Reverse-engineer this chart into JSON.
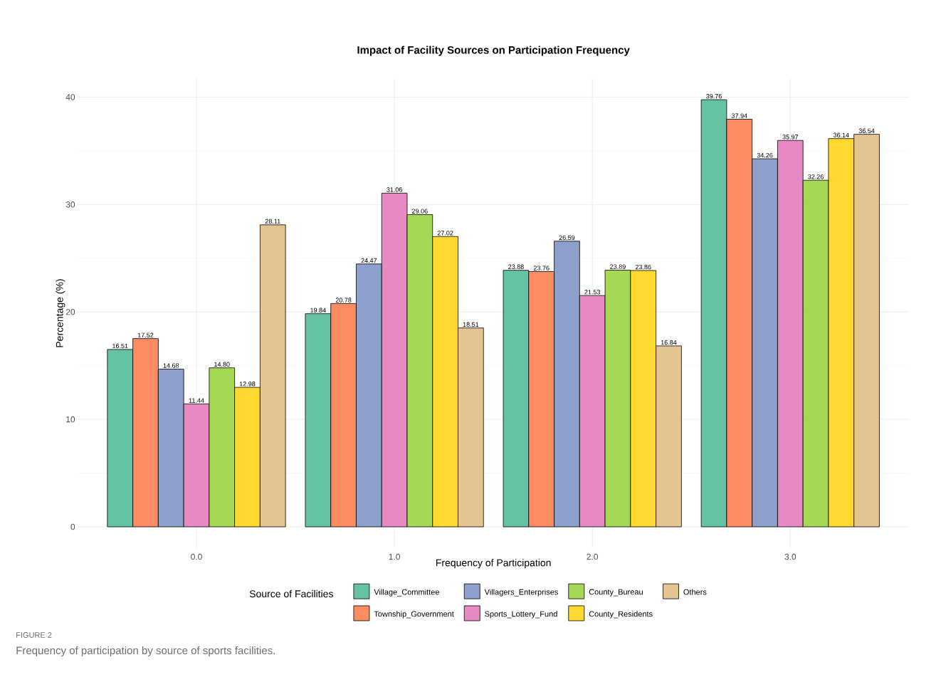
{
  "chart_data": {
    "type": "bar",
    "title": "Impact of Facility Sources on Participation Frequency",
    "xlabel": "Frequency of Participation",
    "ylabel": "Percentage (%)",
    "legend_title": "Source of Facilities",
    "categories": [
      "0.0",
      "1.0",
      "2.0",
      "3.0"
    ],
    "series": [
      {
        "name": "Village_Committee",
        "color": "#66c2a5",
        "values": [
          16.51,
          19.84,
          23.88,
          39.76
        ],
        "value_labels": [
          "16.51",
          "19.84",
          "23.88",
          "39.76"
        ]
      },
      {
        "name": "Township_Government",
        "color": "#fc8d62",
        "values": [
          17.52,
          20.78,
          23.76,
          37.94
        ],
        "value_labels": [
          "17.52",
          "20.78",
          "23.76",
          "37.94"
        ]
      },
      {
        "name": "Villagers_Enterprises",
        "color": "#8da0cb",
        "values": [
          14.68,
          24.47,
          26.59,
          34.26
        ],
        "value_labels": [
          "14.68",
          "24.47",
          "26.59",
          "34.26"
        ]
      },
      {
        "name": "Sports_Lottery_Fund",
        "color": "#e78ac3",
        "values": [
          11.44,
          31.06,
          21.53,
          35.97
        ],
        "value_labels": [
          "11.44",
          "31.06",
          "21.53",
          "35.97"
        ]
      },
      {
        "name": "County_Bureau",
        "color": "#a6d854",
        "values": [
          14.8,
          29.06,
          23.89,
          32.26
        ],
        "value_labels": [
          "14.80",
          "29.06",
          "23.89",
          "32.26"
        ]
      },
      {
        "name": "County_Residents",
        "color": "#ffd92f",
        "values": [
          12.98,
          27.02,
          23.86,
          36.14
        ],
        "value_labels": [
          "12.98",
          "27.02",
          "23.86",
          "36.14"
        ]
      },
      {
        "name": "Others",
        "color": "#e5c494",
        "values": [
          28.11,
          18.51,
          16.84,
          36.54
        ],
        "value_labels": [
          "28.11",
          "18.51",
          "16.84",
          "36.54"
        ]
      }
    ],
    "ylim": [
      -1.99,
      41.75
    ],
    "yticks": [
      0,
      10,
      20,
      30,
      40
    ],
    "grid": true,
    "legend": "bottom",
    "annotations": [
      "FIGURE 2",
      "Frequency of participation by source of sports facilities."
    ]
  }
}
